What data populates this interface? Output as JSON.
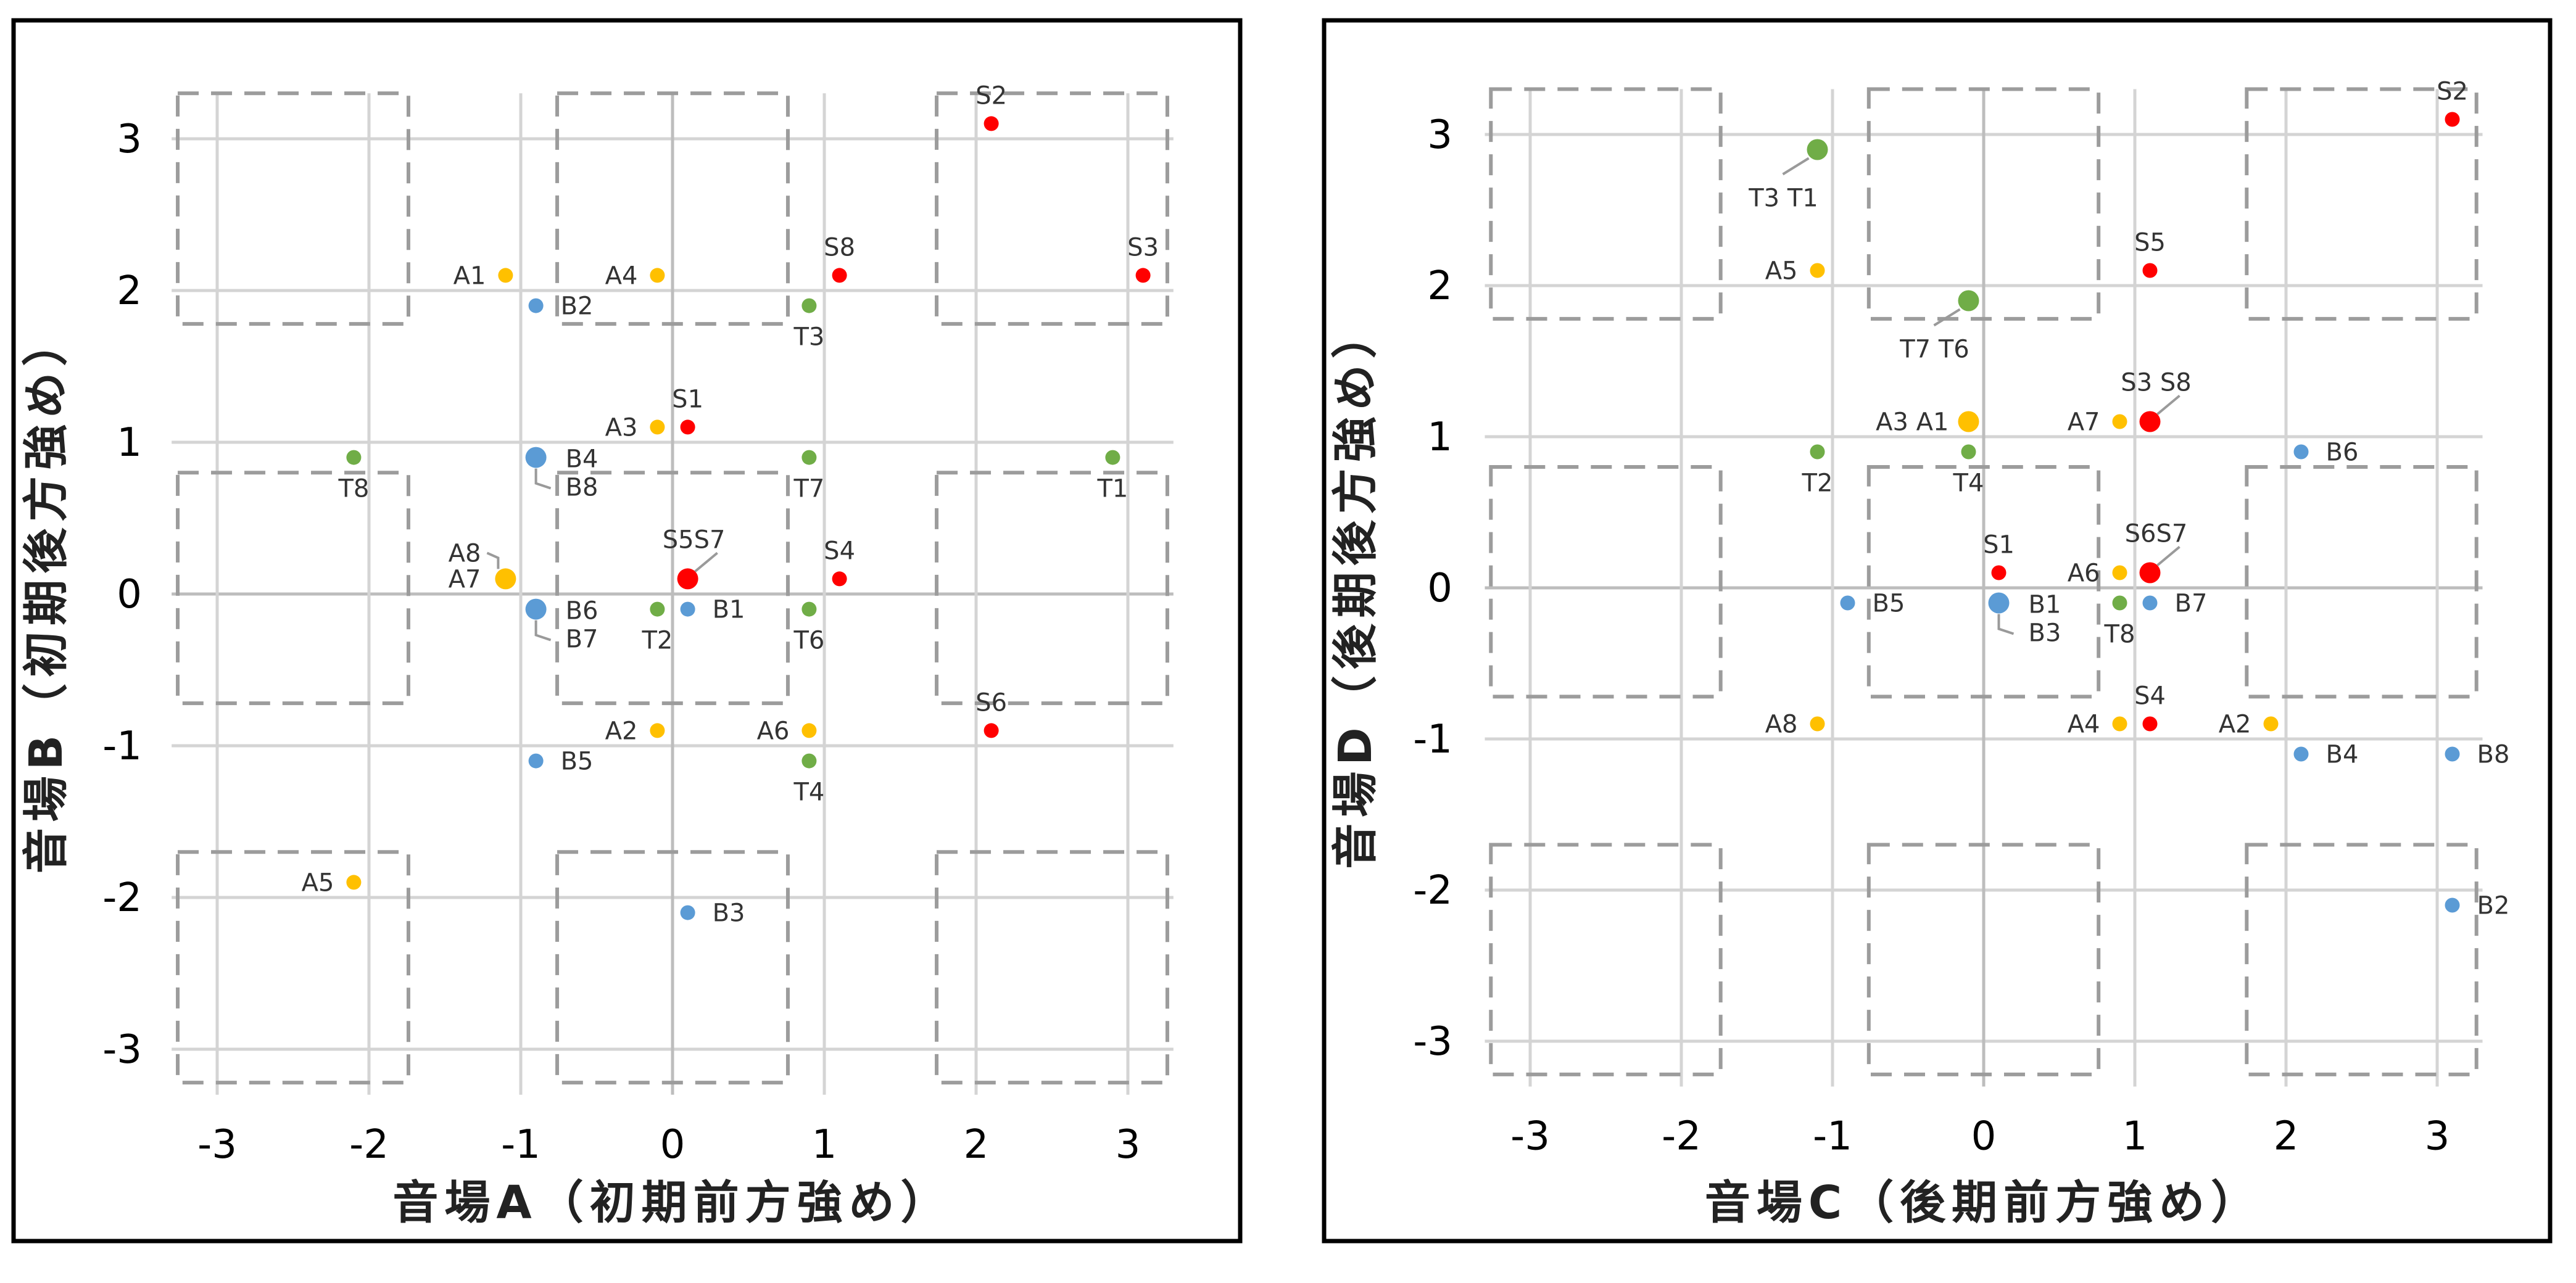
{
  "colors": {
    "S": "#ff0000",
    "A": "#ffc000",
    "B": "#5b9bd5",
    "T": "#70ad47"
  },
  "chart_data": [
    {
      "type": "scatter",
      "xlabel": "音場A（初期前方強め）",
      "ylabel": "音場B（初期後方強め）",
      "xlim": [
        -3.3,
        3.3
      ],
      "ylim": [
        -3.3,
        3.3
      ],
      "xticks": [
        -3,
        -2,
        -1,
        0,
        1,
        2,
        3
      ],
      "yticks": [
        3,
        2,
        1,
        0,
        -1,
        -2,
        -3
      ],
      "grid": true,
      "legend": "none",
      "groups": [
        {
          "group": "S",
          "points": [
            {
              "x": 2.1,
              "y": 3.1,
              "size": "small",
              "label": "S2",
              "lp": "above"
            },
            {
              "x": 1.1,
              "y": 2.1,
              "size": "small",
              "label": "S8",
              "lp": "above"
            },
            {
              "x": 3.1,
              "y": 2.1,
              "size": "small",
              "label": "S3",
              "lp": "above"
            },
            {
              "x": 0.1,
              "y": 1.1,
              "size": "small",
              "label": "S1",
              "lp": "above"
            },
            {
              "x": 0.1,
              "y": 0.1,
              "size": "large",
              "label": "S5S7",
              "lp": "above-right"
            },
            {
              "x": 1.1,
              "y": 0.1,
              "size": "small",
              "label": "S4",
              "lp": "above"
            },
            {
              "x": 2.1,
              "y": -0.9,
              "size": "small",
              "label": "S6",
              "lp": "above"
            }
          ]
        },
        {
          "group": "A",
          "points": [
            {
              "x": -1.1,
              "y": 2.1,
              "size": "small",
              "label": "A1",
              "lp": "left"
            },
            {
              "x": -0.1,
              "y": 2.1,
              "size": "small",
              "label": "A4",
              "lp": "left"
            },
            {
              "x": -0.1,
              "y": 1.1,
              "size": "small",
              "label": "A3",
              "lp": "left"
            },
            {
              "x": -1.1,
              "y": 0.1,
              "size": "large",
              "label": "A8\nA7",
              "lp": "left-stack"
            },
            {
              "x": -0.1,
              "y": -0.9,
              "size": "small",
              "label": "A2",
              "lp": "left"
            },
            {
              "x": 0.9,
              "y": -0.9,
              "size": "small",
              "label": "A6",
              "lp": "left"
            },
            {
              "x": -2.1,
              "y": -1.9,
              "size": "small",
              "label": "A5",
              "lp": "left"
            }
          ]
        },
        {
          "group": "B",
          "points": [
            {
              "x": -0.9,
              "y": 1.9,
              "size": "small",
              "label": "B2",
              "lp": "right"
            },
            {
              "x": -0.9,
              "y": 0.9,
              "size": "large",
              "label": "B4\nB8",
              "lp": "right-stack"
            },
            {
              "x": -0.9,
              "y": -0.1,
              "size": "large",
              "label": "B6\nB7",
              "lp": "right-stack"
            },
            {
              "x": 0.1,
              "y": -0.1,
              "size": "small",
              "label": "B1",
              "lp": "right"
            },
            {
              "x": -0.9,
              "y": -1.1,
              "size": "small",
              "label": "B5",
              "lp": "right"
            },
            {
              "x": 0.1,
              "y": -2.1,
              "size": "small",
              "label": "B3",
              "lp": "right"
            }
          ]
        },
        {
          "group": "T",
          "points": [
            {
              "x": 0.9,
              "y": 1.9,
              "size": "small",
              "label": "T3",
              "lp": "below"
            },
            {
              "x": -2.1,
              "y": 0.9,
              "size": "small",
              "label": "T8",
              "lp": "below"
            },
            {
              "x": 0.9,
              "y": 0.9,
              "size": "small",
              "label": "T7",
              "lp": "below"
            },
            {
              "x": 2.9,
              "y": 0.9,
              "size": "small",
              "label": "T1",
              "lp": "below"
            },
            {
              "x": -0.1,
              "y": -0.1,
              "size": "small",
              "label": "T2",
              "lp": "below"
            },
            {
              "x": 0.9,
              "y": -0.1,
              "size": "small",
              "label": "T6",
              "lp": "below"
            },
            {
              "x": 0.9,
              "y": -1.1,
              "size": "small",
              "label": "T4",
              "lp": "below"
            }
          ]
        }
      ]
    },
    {
      "type": "scatter",
      "xlabel": "音場C（後期前方強め）",
      "ylabel": "音場D（後期後方強め）",
      "xlim": [
        -3.3,
        3.3
      ],
      "ylim": [
        -3.3,
        3.3
      ],
      "xticks": [
        -3,
        -2,
        -1,
        0,
        1,
        2,
        3
      ],
      "yticks": [
        3,
        2,
        1,
        0,
        -1,
        -2,
        -3
      ],
      "grid": true,
      "legend": "none",
      "groups": [
        {
          "group": "S",
          "points": [
            {
              "x": 3.1,
              "y": 3.1,
              "size": "small",
              "label": "S2",
              "lp": "above"
            },
            {
              "x": 1.1,
              "y": 2.1,
              "size": "small",
              "label": "S5",
              "lp": "above"
            },
            {
              "x": 1.1,
              "y": 1.1,
              "size": "large",
              "label": "S3 S8",
              "lp": "above-right"
            },
            {
              "x": 0.1,
              "y": 0.1,
              "size": "small",
              "label": "S1",
              "lp": "above"
            },
            {
              "x": 1.1,
              "y": 0.1,
              "size": "large",
              "label": "S6S7",
              "lp": "above-right"
            },
            {
              "x": 1.1,
              "y": -0.9,
              "size": "small",
              "label": "S4",
              "lp": "above"
            }
          ]
        },
        {
          "group": "A",
          "points": [
            {
              "x": -1.1,
              "y": 2.1,
              "size": "small",
              "label": "A5",
              "lp": "left"
            },
            {
              "x": -0.1,
              "y": 1.1,
              "size": "large",
              "label": "A3 A1",
              "lp": "left"
            },
            {
              "x": 0.9,
              "y": 1.1,
              "size": "small",
              "label": "A7",
              "lp": "left"
            },
            {
              "x": 0.9,
              "y": 0.1,
              "size": "small",
              "label": "A6",
              "lp": "left"
            },
            {
              "x": -1.1,
              "y": -0.9,
              "size": "small",
              "label": "A8",
              "lp": "left"
            },
            {
              "x": 0.9,
              "y": -0.9,
              "size": "small",
              "label": "A4",
              "lp": "left"
            },
            {
              "x": 1.9,
              "y": -0.9,
              "size": "small",
              "label": "A2",
              "lp": "left"
            }
          ]
        },
        {
          "group": "B",
          "points": [
            {
              "x": 2.1,
              "y": 0.9,
              "size": "small",
              "label": "B6",
              "lp": "right"
            },
            {
              "x": -0.9,
              "y": -0.1,
              "size": "small",
              "label": "B5",
              "lp": "right"
            },
            {
              "x": 0.1,
              "y": -0.1,
              "size": "large",
              "label": "B1\nB3",
              "lp": "right-stack"
            },
            {
              "x": 1.1,
              "y": -0.1,
              "size": "small",
              "label": "B7",
              "lp": "right"
            },
            {
              "x": 2.1,
              "y": -1.1,
              "size": "small",
              "label": "B4",
              "lp": "right"
            },
            {
              "x": 3.1,
              "y": -1.1,
              "size": "small",
              "label": "B8",
              "lp": "right"
            },
            {
              "x": 3.1,
              "y": -2.1,
              "size": "small",
              "label": "B2",
              "lp": "right"
            }
          ]
        },
        {
          "group": "T",
          "points": [
            {
              "x": -1.1,
              "y": 2.9,
              "size": "large",
              "label": "T3 T1",
              "lp": "below-left"
            },
            {
              "x": -0.1,
              "y": 1.9,
              "size": "large",
              "label": "T7 T6",
              "lp": "below-left"
            },
            {
              "x": -1.1,
              "y": 0.9,
              "size": "small",
              "label": "T2",
              "lp": "below"
            },
            {
              "x": -0.1,
              "y": 0.9,
              "size": "small",
              "label": "T4",
              "lp": "below"
            },
            {
              "x": 0.9,
              "y": -0.1,
              "size": "small",
              "label": "T8",
              "lp": "below"
            }
          ]
        }
      ]
    }
  ]
}
